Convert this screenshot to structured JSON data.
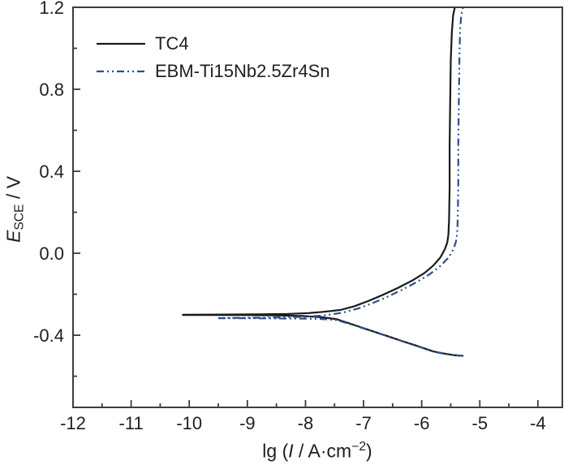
{
  "figure": {
    "kind": "potentiodynamic-polarization-plot",
    "background": "#ffffff",
    "frame_color": "#3d3d3d",
    "text_color": "#1f1f1f"
  },
  "chart_data": {
    "type": "line",
    "title": "",
    "xlabel": "lg (I / A·cm−2)",
    "ylabel": "E_SCE / V",
    "grid": "off",
    "x_axis": {
      "range": [
        -12,
        -3.58
      ],
      "major_ticks": [
        -12,
        -11,
        -10,
        -9,
        -8,
        -7,
        -6,
        -5,
        -4
      ],
      "major_tick_labels": [
        "-12",
        "-11",
        "-10",
        "-9",
        "-8",
        "-7",
        "-6",
        "-5",
        "-4"
      ],
      "minor_ticks": [
        -11.5,
        -10.5,
        -9.5,
        -8.5,
        -7.5,
        -6.5,
        -5.5,
        -4.5
      ],
      "label_parts": {
        "prefix": "lg (",
        "symbol": "I",
        "mid": " / A·cm",
        "sup": "−2",
        "suffix": ")"
      }
    },
    "y_axis": {
      "range": [
        -0.752,
        1.2
      ],
      "major_ticks": [
        1.2,
        0.8,
        0.4,
        0.0,
        -0.4
      ],
      "major_tick_labels": [
        "1.2",
        "0.8",
        "0.4",
        "0.0",
        "-0.4"
      ],
      "minor_ticks": [
        1.0,
        0.6,
        0.2,
        -0.2,
        -0.6
      ],
      "label_parts": {
        "symbol": "E",
        "sub": "SCE",
        "rest": " / V"
      }
    },
    "legend": {
      "position": "top-left",
      "items": [
        {
          "label": "TC4",
          "color": "#1a1a1a",
          "dash": "solid"
        },
        {
          "label": "EBM-Ti15Nb2.5Zr4Sn",
          "color": "#2f4e8c",
          "dash": "dash-dot-dot"
        }
      ]
    },
    "series": [
      {
        "name": "TC4",
        "color": "#1a1a1a",
        "style": "solid",
        "width": 2.2,
        "points": [
          [
            -5.3,
            -0.5
          ],
          [
            -5.45,
            -0.497
          ],
          [
            -5.6,
            -0.49
          ],
          [
            -5.8,
            -0.479
          ],
          [
            -6.06,
            -0.454
          ],
          [
            -6.34,
            -0.428
          ],
          [
            -6.62,
            -0.401
          ],
          [
            -6.9,
            -0.375
          ],
          [
            -7.18,
            -0.348
          ],
          [
            -7.46,
            -0.322
          ],
          [
            -7.72,
            -0.312
          ],
          [
            -8.05,
            -0.306
          ],
          [
            -8.5,
            -0.303
          ],
          [
            -9.0,
            -0.302
          ],
          [
            -9.6,
            -0.301
          ],
          [
            -10.11,
            -0.301
          ],
          [
            -10.11,
            -0.3
          ],
          [
            -9.4,
            -0.299
          ],
          [
            -8.8,
            -0.298
          ],
          [
            -8.3,
            -0.296
          ],
          [
            -7.95,
            -0.292
          ],
          [
            -7.7,
            -0.286
          ],
          [
            -7.4,
            -0.277
          ],
          [
            -7.15,
            -0.258
          ],
          [
            -6.9,
            -0.231
          ],
          [
            -6.65,
            -0.201
          ],
          [
            -6.4,
            -0.168
          ],
          [
            -6.15,
            -0.131
          ],
          [
            -5.95,
            -0.096
          ],
          [
            -5.8,
            -0.06
          ],
          [
            -5.68,
            -0.021
          ],
          [
            -5.6,
            0.02
          ],
          [
            -5.56,
            0.052
          ],
          [
            -5.54,
            0.09
          ],
          [
            -5.53,
            0.16
          ],
          [
            -5.52,
            0.32
          ],
          [
            -5.52,
            0.52
          ],
          [
            -5.51,
            0.74
          ],
          [
            -5.5,
            0.94
          ],
          [
            -5.48,
            1.08
          ],
          [
            -5.46,
            1.16
          ],
          [
            -5.43,
            1.2
          ]
        ]
      },
      {
        "name": "EBM-Ti15Nb2.5Zr4Sn",
        "color": "#2f4e8c",
        "style": "dash-dot-dot",
        "width": 2.2,
        "points": [
          [
            -5.28,
            -0.501
          ],
          [
            -5.44,
            -0.498
          ],
          [
            -5.6,
            -0.491
          ],
          [
            -5.8,
            -0.48
          ],
          [
            -6.06,
            -0.455
          ],
          [
            -6.34,
            -0.429
          ],
          [
            -6.62,
            -0.402
          ],
          [
            -6.9,
            -0.376
          ],
          [
            -7.18,
            -0.35
          ],
          [
            -7.46,
            -0.326
          ],
          [
            -7.72,
            -0.321
          ],
          [
            -8.05,
            -0.319
          ],
          [
            -8.5,
            -0.318
          ],
          [
            -9.0,
            -0.317
          ],
          [
            -9.49,
            -0.317
          ],
          [
            -9.49,
            -0.316
          ],
          [
            -8.9,
            -0.315
          ],
          [
            -8.4,
            -0.313
          ],
          [
            -8.0,
            -0.31
          ],
          [
            -7.68,
            -0.303
          ],
          [
            -7.38,
            -0.291
          ],
          [
            -7.1,
            -0.27
          ],
          [
            -6.84,
            -0.243
          ],
          [
            -6.58,
            -0.211
          ],
          [
            -6.32,
            -0.176
          ],
          [
            -6.07,
            -0.138
          ],
          [
            -5.85,
            -0.1
          ],
          [
            -5.67,
            -0.06
          ],
          [
            -5.53,
            -0.018
          ],
          [
            -5.45,
            0.022
          ],
          [
            -5.41,
            0.056
          ],
          [
            -5.39,
            0.095
          ],
          [
            -5.38,
            0.165
          ],
          [
            -5.37,
            0.33
          ],
          [
            -5.37,
            0.53
          ],
          [
            -5.36,
            0.75
          ],
          [
            -5.35,
            0.95
          ],
          [
            -5.34,
            1.09
          ],
          [
            -5.32,
            1.16
          ],
          [
            -5.29,
            1.2
          ]
        ]
      }
    ]
  }
}
